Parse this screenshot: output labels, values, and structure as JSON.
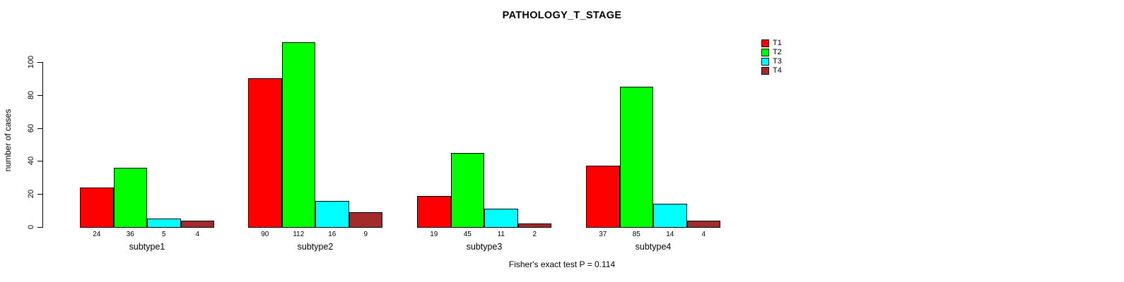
{
  "page": {
    "background": "#ffffff"
  },
  "chart_data": {
    "type": "bar",
    "title": "PATHOLOGY_T_STAGE",
    "ylabel": "number of cases",
    "xlabel": "",
    "footnote": "Fisher's exact test P = 0.114",
    "categories": [
      "subtype1",
      "subtype2",
      "subtype3",
      "subtype4"
    ],
    "series": [
      {
        "name": "T1",
        "color": "#ff0000",
        "values": [
          24,
          90,
          19,
          37
        ]
      },
      {
        "name": "T2",
        "color": "#00ff00",
        "values": [
          36,
          112,
          45,
          85
        ]
      },
      {
        "name": "T3",
        "color": "#00ffff",
        "values": [
          5,
          16,
          11,
          14
        ]
      },
      {
        "name": "T4",
        "color": "#a52a2a",
        "values": [
          4,
          9,
          2,
          4
        ]
      }
    ],
    "yticks": [
      0,
      20,
      40,
      60,
      80,
      100
    ],
    "ylim": [
      0,
      100
    ],
    "grid": false,
    "bar_value_labels_shown": true,
    "legend": {
      "position": "top-right",
      "entries": [
        "T1",
        "T2",
        "T3",
        "T4"
      ]
    }
  }
}
